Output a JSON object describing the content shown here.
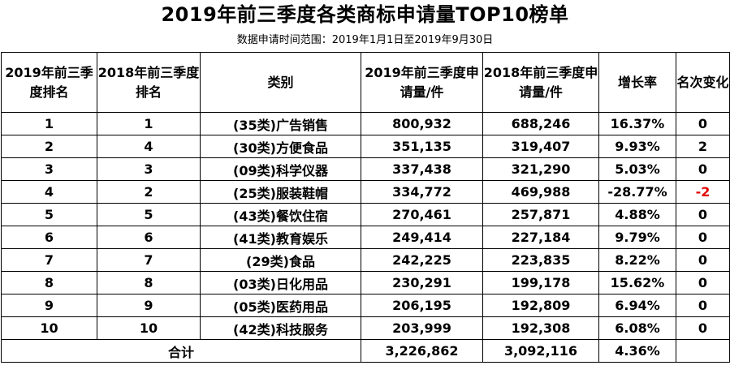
{
  "title": "2019年前三季度各类商标申请量TOP10榜单",
  "subtitle": "数据申请时间范围：2019年1月1日至2019年9月30日",
  "headers": {
    "rank2019": "2019年前三季度排名",
    "rank2018": "2018年前三季度排名",
    "category": "类别",
    "apps2019": "2019年前三季度申请量/件",
    "apps2018": "2018年前三季度申请量/件",
    "growth": "增长率",
    "change": "名次变化"
  },
  "rows": [
    {
      "rank2019": "1",
      "rank2018": "1",
      "category": "(35类)广告销售",
      "apps2019": "800,932",
      "apps2018": "688,246",
      "growth": "16.37%",
      "change": "0"
    },
    {
      "rank2019": "2",
      "rank2018": "4",
      "category": "(30类)方便食品",
      "apps2019": "351,135",
      "apps2018": "319,407",
      "growth": "9.93%",
      "change": "2"
    },
    {
      "rank2019": "3",
      "rank2018": "3",
      "category": "(09类)科学仪器",
      "apps2019": "337,438",
      "apps2018": "321,290",
      "growth": "5.03%",
      "change": "0"
    },
    {
      "rank2019": "4",
      "rank2018": "2",
      "category": "(25类)服装鞋帽",
      "apps2019": "334,772",
      "apps2018": "469,988",
      "growth": "-28.77%",
      "change": "-2"
    },
    {
      "rank2019": "5",
      "rank2018": "5",
      "category": "(43类)餐饮住宿",
      "apps2019": "270,461",
      "apps2018": "257,871",
      "growth": "4.88%",
      "change": "0"
    },
    {
      "rank2019": "6",
      "rank2018": "6",
      "category": "(41类)教育娱乐",
      "apps2019": "249,414",
      "apps2018": "227,184",
      "growth": "9.79%",
      "change": "0"
    },
    {
      "rank2019": "7",
      "rank2018": "7",
      "category": "(29类)食品",
      "apps2019": "242,225",
      "apps2018": "223,835",
      "growth": "8.22%",
      "change": "0"
    },
    {
      "rank2019": "8",
      "rank2018": "8",
      "category": "(03类)日化用品",
      "apps2019": "230,291",
      "apps2018": "199,178",
      "growth": "15.62%",
      "change": "0"
    },
    {
      "rank2019": "9",
      "rank2018": "9",
      "category": "(05类)医药用品",
      "apps2019": "206,195",
      "apps2018": "192,809",
      "growth": "6.94%",
      "change": "0"
    },
    {
      "rank2019": "10",
      "rank2018": "10",
      "category": "(42类)科技服务",
      "apps2019": "203,999",
      "apps2018": "192,308",
      "growth": "6.08%",
      "change": "0"
    }
  ],
  "total": {
    "label": "合计",
    "apps2019": "3,226,862",
    "apps2018": "3,092,116",
    "growth": "4.36%",
    "change": ""
  },
  "colors": {
    "negative_change": "#e00000"
  }
}
